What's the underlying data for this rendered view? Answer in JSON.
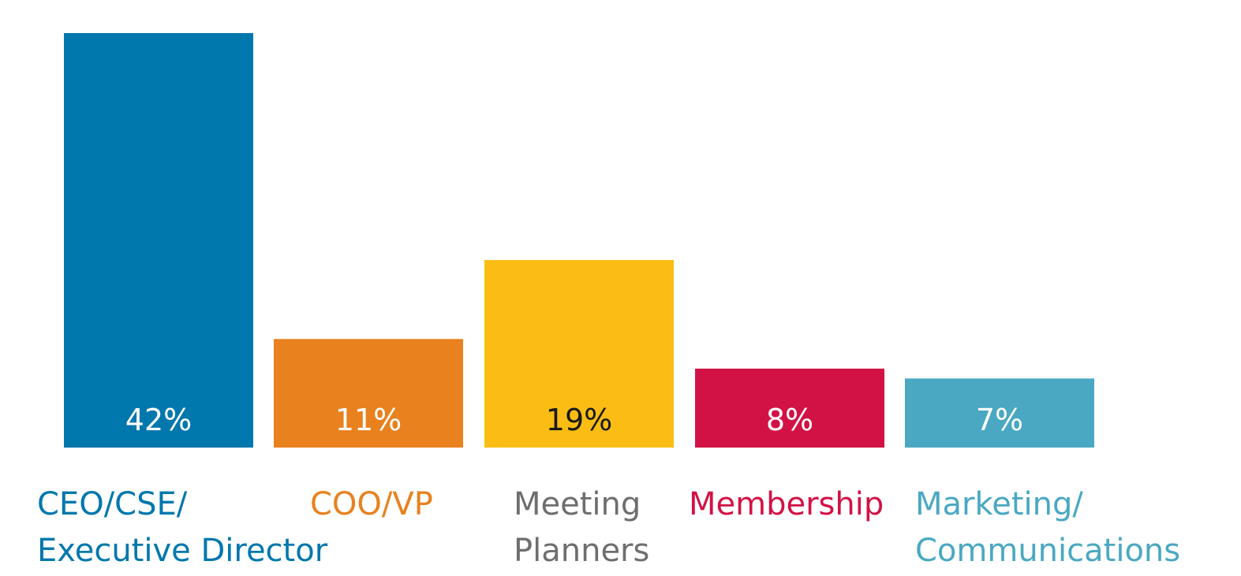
{
  "chart_data": {
    "type": "bar",
    "categories": [
      [
        "CEO/CSE/",
        "Executive Director"
      ],
      [
        "COO/VP"
      ],
      [
        "Meeting",
        "Planners"
      ],
      [
        "Membership"
      ],
      [
        "Marketing/",
        "Communications"
      ]
    ],
    "values": [
      42,
      11,
      19,
      8,
      7
    ],
    "value_labels": [
      "42%",
      "11%",
      "19%",
      "8%",
      "7%"
    ],
    "bar_colors": [
      "#0077AD",
      "#E8811E",
      "#FBBD14",
      "#D21245",
      "#4AA8C2"
    ],
    "label_colors": [
      "#0077AD",
      "#E8811E",
      "#6D6E70",
      "#D21245",
      "#4AA8C2"
    ],
    "value_label_colors": [
      "#FFFFFF",
      "#FFFFFF",
      "#1A1A1A",
      "#FFFFFF",
      "#FFFFFF"
    ],
    "ylim": [
      0,
      42
    ],
    "grid": false,
    "legend": false
  }
}
